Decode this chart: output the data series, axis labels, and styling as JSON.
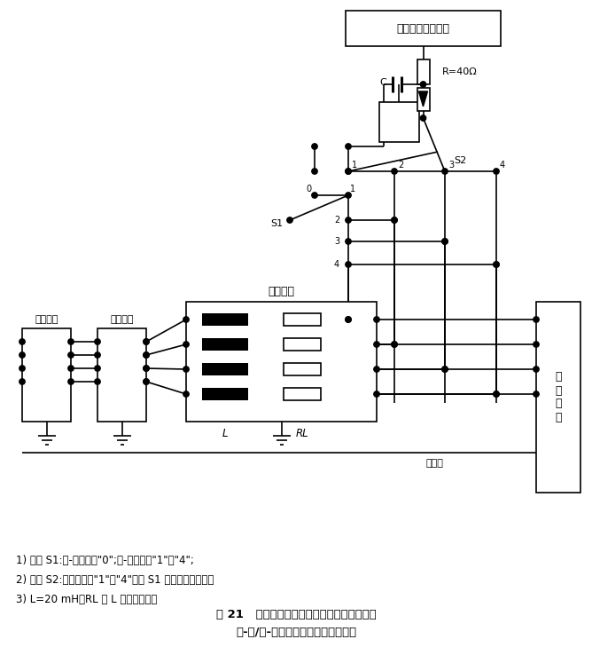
{
  "title_fig": "图 21   非屏蔽不对称工作线路试验配置示例；",
  "title_sub": "线-线/线-地耦合，用气体放电管耦合",
  "note1": "1) 开关 S1:线-地，置于\"0\";线-线，置于\"1\"～\"4\";",
  "note2": "2) 开关 S2:试验时置于\"1\"～\"4\"但与 S1 不在相同的位置。",
  "note3": "3) L=20 mH，RL 为 L 的电阻部分。",
  "label_generator": "组合波信号发生器",
  "label_R": "R=40Ω",
  "label_C": "C",
  "label_S1": "S1",
  "label_S2": "S2",
  "label_decoupling": "去耦网络",
  "label_aux": "辅助设备",
  "label_protect": "保护设备",
  "label_eut": "受\n试\n样\n品",
  "label_ref_ground": "参考地",
  "label_L": "L",
  "label_RL": "RL",
  "line_color": "#000000",
  "bg_color": "#ffffff"
}
